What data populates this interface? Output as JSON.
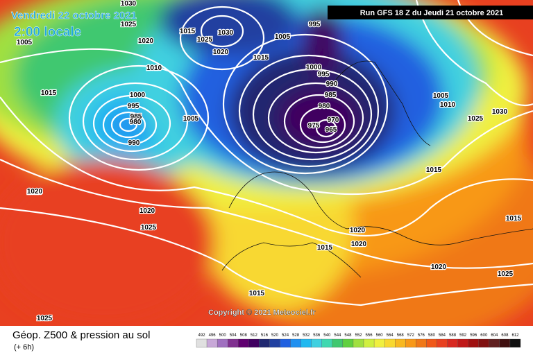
{
  "header": {
    "date": "Vendredi 22 octobre 2021",
    "time": "2:00 locale",
    "run": "Run GFS 18 Z du Jeudi 21 octobre 2021"
  },
  "copyright": "Copyright © 2021 Meteociel.fr",
  "footer": {
    "title": "Géop. Z500 & pression au sol",
    "lead": "(+ 6h)"
  },
  "legend": {
    "labels": [
      "492",
      "496",
      "500",
      "504",
      "508",
      "512",
      "516",
      "520",
      "524",
      "528",
      "532",
      "536",
      "540",
      "544",
      "548",
      "552",
      "556",
      "560",
      "564",
      "568",
      "572",
      "576",
      "580",
      "584",
      "588",
      "592",
      "596",
      "600",
      "604",
      "608",
      "612"
    ],
    "colors": [
      "#e0e0e0",
      "#c8a8d8",
      "#a070c0",
      "#803090",
      "#600070",
      "#400060",
      "#202870",
      "#2040a0",
      "#2060e0",
      "#2090f0",
      "#20b8f0",
      "#40d0e0",
      "#40d8b0",
      "#40c870",
      "#60d040",
      "#a0e040",
      "#d0f040",
      "#f0f040",
      "#f8d830",
      "#f8b820",
      "#f89818",
      "#f07818",
      "#f05818",
      "#e84020",
      "#d82820",
      "#c01818",
      "#a01010",
      "#801010",
      "#602020",
      "#401010",
      "#101010"
    ]
  },
  "isobars": [
    "1030",
    "1025",
    "1015",
    "1025",
    "1030",
    "1020",
    "1005",
    "1005",
    "1020",
    "1010",
    "1015",
    "1000",
    "995",
    "985",
    "980",
    "990",
    "1005",
    "1015",
    "995",
    "1000",
    "995",
    "990",
    "985",
    "980",
    "970",
    "975",
    "965",
    "1005",
    "1010",
    "1030",
    "1025",
    "1025",
    "1020",
    "1025",
    "1020",
    "1015",
    "1020",
    "1015",
    "1015",
    "1020",
    "1015",
    "1020",
    "1025",
    "1025"
  ]
}
